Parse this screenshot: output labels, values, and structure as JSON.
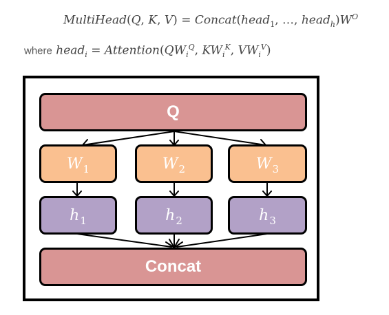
{
  "formula": {
    "line1": "MultiHead(Q, K, V) = Concat(head₁, …, headₕ)Wᴼ",
    "line2_prefix": "where",
    "line2": "headᵢ = Attention(QWᵢᵠ, KWᵢᴷ, VWᵢⱽ)"
  },
  "diagram": {
    "query_label": "Q",
    "weights": [
      {
        "name": "W",
        "sub": "1"
      },
      {
        "name": "W",
        "sub": "2"
      },
      {
        "name": "W",
        "sub": "3"
      }
    ],
    "heads": [
      {
        "name": "h",
        "sub": "1"
      },
      {
        "name": "h",
        "sub": "2"
      },
      {
        "name": "h",
        "sub": "3"
      }
    ],
    "concat_label": "Concat",
    "colors": {
      "query": "#d99594",
      "weights": "#fac090",
      "heads": "#b2a1c7",
      "concat": "#d99594"
    }
  }
}
